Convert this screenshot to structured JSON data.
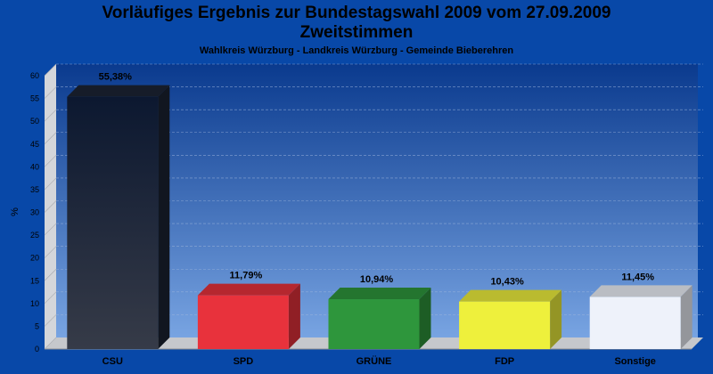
{
  "header": {
    "title_line1": "Vorläufiges Ergebnis zur Bundestagswahl 2009 vom 27.09.2009",
    "title_line2": "Zweitstimmen",
    "subtitle": "Wahlkreis Würzburg - Landkreis Würzburg - Gemeinde Bieberehren"
  },
  "colors": {
    "background": "#0848a8",
    "CSU": "#1c2434",
    "SPD": "#e8323c",
    "GRÜNE": "#2e963c",
    "FDP": "#eef03c",
    "Sonstige": "#eef2fa"
  },
  "chart_data": {
    "type": "bar",
    "title": "Vorläufiges Ergebnis zur Bundestagswahl 2009 vom 27.09.2009",
    "subtitle": "Zweitstimmen",
    "xlabel": "",
    "ylabel": "%",
    "ylim": [
      0,
      60
    ],
    "yticks": [
      0,
      5,
      10,
      15,
      20,
      25,
      30,
      35,
      40,
      45,
      50,
      55,
      60
    ],
    "grid": true,
    "categories": [
      "CSU",
      "SPD",
      "GRÜNE",
      "FDP",
      "Sonstige"
    ],
    "values": [
      55.38,
      11.79,
      10.94,
      10.43,
      11.45
    ],
    "value_labels": [
      "55,38%",
      "11,79%",
      "10,94%",
      "10,43%",
      "11,45%"
    ]
  }
}
